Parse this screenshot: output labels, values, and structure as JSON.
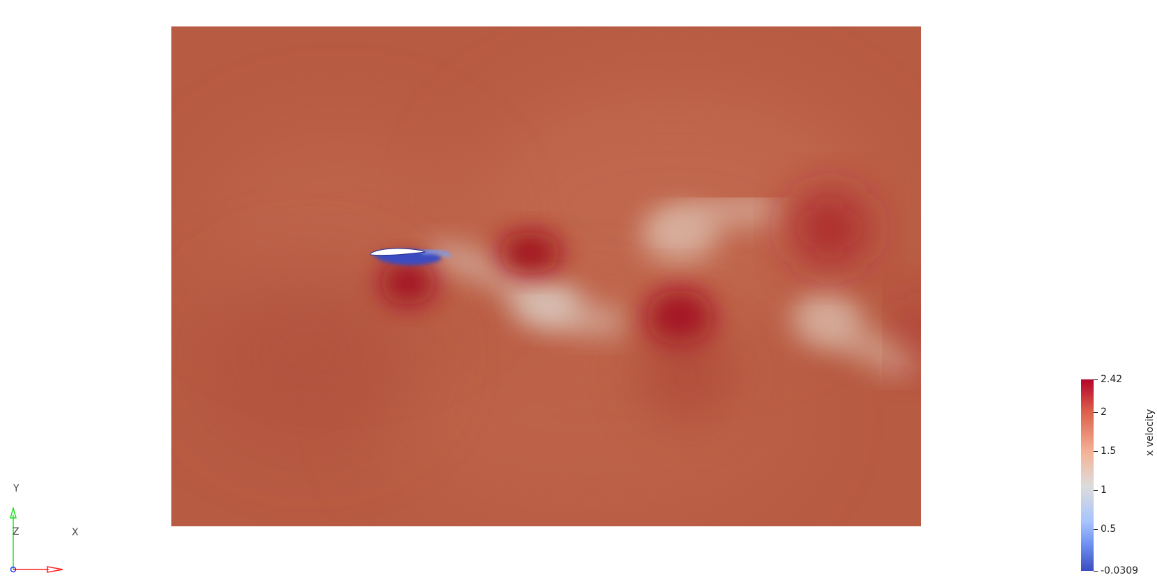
{
  "colorbar": {
    "title": "x velocity",
    "max_label": "2.42",
    "min_label": "-0.0309",
    "ticks": [
      {
        "label": "2.42",
        "value": 2.42
      },
      {
        "label": "2",
        "value": 2
      },
      {
        "label": "1.5",
        "value": 1.5
      },
      {
        "label": "1",
        "value": 1
      },
      {
        "label": "0.5",
        "value": 0.5
      },
      {
        "label": "-0.0309",
        "value": -0.0309
      }
    ],
    "colors": {
      "high": "#b40426",
      "mid": "#dddcdc",
      "low": "#3b4cc0"
    }
  },
  "axes": {
    "x_label": "X",
    "y_label": "Y",
    "z_label": "Z",
    "x_color": "#ff2020",
    "y_color": "#20e020",
    "z_color": "#2030ff"
  },
  "field": {
    "background_color": "#b95c44"
  }
}
